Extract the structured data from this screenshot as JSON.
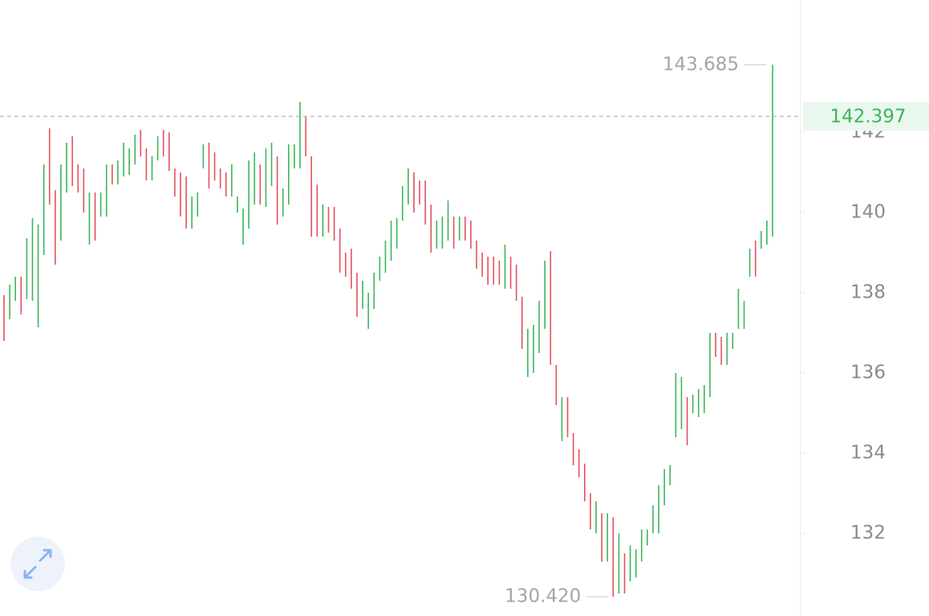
{
  "chart_data": {
    "type": "hilo",
    "high": [
      137.94,
      138.2,
      138.4,
      138.4,
      139.36,
      139.86,
      139.7,
      141.2,
      142.1,
      140.56,
      141.2,
      141.74,
      141.9,
      141.2,
      141.1,
      140.5,
      140.5,
      140.5,
      141.2,
      141.2,
      141.3,
      141.74,
      141.6,
      141.94,
      142.06,
      141.6,
      141.4,
      141.9,
      142.06,
      142,
      141.1,
      141,
      140.9,
      140.4,
      140.5,
      141.7,
      141.74,
      141.5,
      141.1,
      141,
      141.2,
      140.4,
      140.1,
      141.3,
      141.5,
      141.2,
      141.6,
      141.74,
      141.4,
      140.6,
      141.7,
      141.7,
      142.76,
      142.4,
      141.4,
      140.7,
      140.2,
      140.14,
      140.14,
      139.6,
      139,
      139.1,
      138.5,
      138.3,
      138,
      138.5,
      138.9,
      139.3,
      139.8,
      139.86,
      140.66,
      141.1,
      141,
      140.8,
      140.8,
      140.2,
      139.8,
      139.9,
      140.3,
      139.9,
      139.9,
      139.9,
      139.8,
      139.3,
      139,
      138.9,
      138.9,
      138.8,
      139.2,
      138.9,
      138.7,
      137.9,
      137.1,
      137.2,
      137.8,
      138.8,
      139.04,
      136.2,
      135.4,
      135.4,
      134.5,
      134.1,
      133.74,
      133,
      132.8,
      132.5,
      132.5,
      132.4,
      132,
      131.5,
      131.7,
      131.6,
      132.1,
      132.1,
      132.7,
      133.2,
      133.6,
      133.7,
      136,
      135.9,
      135.4,
      135.46,
      135.6,
      135.7,
      137,
      137,
      136.9,
      137,
      137,
      138.1,
      137.8,
      139.1,
      139.3,
      139.54,
      139.8,
      143.685
    ],
    "low": [
      136.8,
      137.34,
      137.8,
      137.46,
      137.84,
      137.8,
      137.14,
      138.94,
      140.2,
      138.7,
      139.3,
      140.5,
      140.66,
      140.5,
      140,
      139.2,
      139.3,
      139.9,
      139.9,
      140.7,
      140.7,
      140.9,
      140.94,
      141.2,
      141.4,
      140.8,
      140.8,
      141.3,
      141.4,
      141.04,
      140.4,
      139.9,
      139.6,
      139.6,
      139.9,
      141.1,
      140.6,
      140.8,
      140.6,
      140.4,
      140.4,
      140,
      139.2,
      139.6,
      140.2,
      140.2,
      140.14,
      140.66,
      139.7,
      139.9,
      140.2,
      141.1,
      141.1,
      141.4,
      139.4,
      139.4,
      139.4,
      139.5,
      139.3,
      138.5,
      138.4,
      138.1,
      137.4,
      137.6,
      137.1,
      137.6,
      138.3,
      138.5,
      138.8,
      139.1,
      139.8,
      140.2,
      140,
      140.2,
      139.7,
      139,
      139.1,
      139.1,
      139.3,
      139.1,
      139.3,
      139.3,
      139.1,
      138.6,
      138.4,
      138.2,
      138.2,
      138.2,
      138.1,
      138.1,
      137.8,
      136.6,
      135.9,
      136,
      136.5,
      137.1,
      136.2,
      135.2,
      134.3,
      134.4,
      133.7,
      133.4,
      132.8,
      132.1,
      132,
      131.3,
      131.3,
      130.42,
      130.5,
      130.5,
      130.8,
      130.9,
      131.3,
      131.7,
      132,
      132,
      132.7,
      133.2,
      134.4,
      134.6,
      134.2,
      135,
      134.9,
      135,
      135.4,
      136.4,
      136.2,
      136.2,
      136.6,
      137.1,
      137.1,
      138.4,
      138.4,
      139.1,
      139.2,
      139.4
    ],
    "direction": [
      "down",
      "up",
      "up",
      "down",
      "up",
      "up",
      "up",
      "up",
      "down",
      "down",
      "up",
      "up",
      "down",
      "down",
      "down",
      "up",
      "down",
      "up",
      "up",
      "down",
      "up",
      "up",
      "up",
      "up",
      "down",
      "down",
      "up",
      "up",
      "down",
      "down",
      "down",
      "down",
      "down",
      "up",
      "up",
      "up",
      "down",
      "down",
      "down",
      "down",
      "up",
      "up",
      "up",
      "up",
      "up",
      "down",
      "up",
      "up",
      "down",
      "up",
      "up",
      "up",
      "up",
      "down",
      "down",
      "down",
      "up",
      "down",
      "down",
      "down",
      "down",
      "down",
      "down",
      "up",
      "up",
      "up",
      "up",
      "up",
      "up",
      "up",
      "up",
      "up",
      "down",
      "down",
      "down",
      "down",
      "up",
      "up",
      "up",
      "down",
      "up",
      "down",
      "down",
      "down",
      "down",
      "down",
      "down",
      "down",
      "up",
      "down",
      "down",
      "down",
      "up",
      "up",
      "up",
      "up",
      "down",
      "down",
      "up",
      "down",
      "down",
      "down",
      "down",
      "down",
      "up",
      "down",
      "up",
      "down",
      "up",
      "down",
      "up",
      "up",
      "up",
      "up",
      "up",
      "up",
      "up",
      "up",
      "up",
      "up",
      "down",
      "up",
      "up",
      "up",
      "up",
      "down",
      "down",
      "up",
      "up",
      "up",
      "up",
      "up",
      "down",
      "up",
      "up",
      "up"
    ],
    "colors": {
      "up": "#3cb55a",
      "down": "#e4505e"
    },
    "high_label": "143.685",
    "low_label": "130.420",
    "last_price": 142.397,
    "last_price_color": "#3cb55a",
    "ylim": [
      129.94,
      145.3
    ],
    "yticks": [
      132,
      134,
      136,
      138,
      140,
      142
    ]
  }
}
